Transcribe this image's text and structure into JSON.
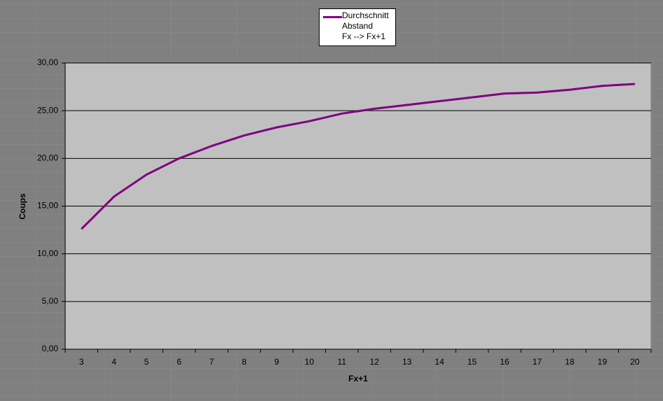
{
  "chart_data": {
    "type": "line",
    "x_label": "Fx+1",
    "y_label": "Coups",
    "categories": [
      "3",
      "4",
      "5",
      "6",
      "7",
      "8",
      "9",
      "10",
      "11",
      "12",
      "13",
      "14",
      "15",
      "16",
      "17",
      "18",
      "19",
      "20"
    ],
    "series": [
      {
        "name": "Durchschnitt\nAbstand\nFx --> Fx+1",
        "color": "#800080",
        "values": [
          12.6,
          16.0,
          18.3,
          20.0,
          21.3,
          22.4,
          23.25,
          23.9,
          24.7,
          25.2,
          25.6,
          26.0,
          26.4,
          26.8,
          26.9,
          27.2,
          27.6,
          27.8
        ]
      }
    ],
    "ylim": [
      0,
      30
    ],
    "yticks": [
      {
        "value": 0,
        "label": "0,00"
      },
      {
        "value": 5,
        "label": "5,00"
      },
      {
        "value": 10,
        "label": "10,00"
      },
      {
        "value": 15,
        "label": "15,00"
      },
      {
        "value": 20,
        "label": "20,00"
      },
      {
        "value": 25,
        "label": "25,00"
      },
      {
        "value": 30,
        "label": "30,00"
      }
    ],
    "grid": true,
    "legend": "top"
  }
}
